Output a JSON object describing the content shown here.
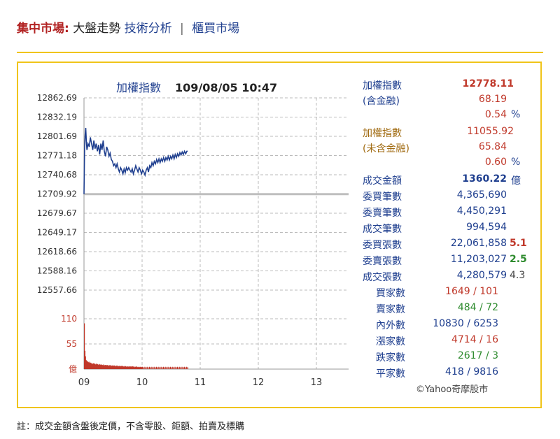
{
  "header": {
    "brand": "集中市場:",
    "current": "大盤走勢",
    "link_ta": "技術分析",
    "separator": "|",
    "link_otc": "櫃買市場"
  },
  "chart_data": {
    "type": "line",
    "title": "加權指數",
    "timestamp": "109/08/05 10:47",
    "x_ticks": [
      "09",
      "10",
      "11",
      "12",
      "13"
    ],
    "y_ticks": [
      "12862.69",
      "12832.19",
      "12801.69",
      "12771.18",
      "12740.68",
      "12709.92",
      "12679.67",
      "12649.17",
      "12618.66",
      "12588.16",
      "12557.66"
    ],
    "ylim": [
      12557.66,
      12862.69
    ],
    "reference": 12709.92,
    "price_series": [
      [
        9.0,
        12709.92
      ],
      [
        9.01,
        12780
      ],
      [
        9.02,
        12805
      ],
      [
        9.03,
        12815
      ],
      [
        9.04,
        12795
      ],
      [
        9.05,
        12780
      ],
      [
        9.07,
        12790
      ],
      [
        9.09,
        12785
      ],
      [
        9.11,
        12800
      ],
      [
        9.13,
        12790
      ],
      [
        9.15,
        12780
      ],
      [
        9.17,
        12795
      ],
      [
        9.19,
        12782
      ],
      [
        9.21,
        12790
      ],
      [
        9.23,
        12778
      ],
      [
        9.25,
        12788
      ],
      [
        9.27,
        12773
      ],
      [
        9.29,
        12790
      ],
      [
        9.31,
        12780
      ],
      [
        9.33,
        12795
      ],
      [
        9.35,
        12778
      ],
      [
        9.37,
        12770
      ],
      [
        9.39,
        12785
      ],
      [
        9.41,
        12780
      ],
      [
        9.43,
        12770
      ],
      [
        9.45,
        12775
      ],
      [
        9.47,
        12765
      ],
      [
        9.49,
        12762
      ],
      [
        9.51,
        12755
      ],
      [
        9.53,
        12758
      ],
      [
        9.55,
        12752
      ],
      [
        9.57,
        12758
      ],
      [
        9.59,
        12750
      ],
      [
        9.61,
        12745
      ],
      [
        9.63,
        12752
      ],
      [
        9.65,
        12748
      ],
      [
        9.67,
        12742
      ],
      [
        9.69,
        12750
      ],
      [
        9.71,
        12744
      ],
      [
        9.73,
        12752
      ],
      [
        9.75,
        12748
      ],
      [
        9.77,
        12752
      ],
      [
        9.79,
        12748
      ],
      [
        9.81,
        12745
      ],
      [
        9.83,
        12750
      ],
      [
        9.85,
        12742
      ],
      [
        9.87,
        12748
      ],
      [
        9.89,
        12755
      ],
      [
        9.91,
        12750
      ],
      [
        9.93,
        12745
      ],
      [
        9.95,
        12752
      ],
      [
        9.97,
        12748
      ],
      [
        9.99,
        12742
      ],
      [
        10.01,
        12748
      ],
      [
        10.03,
        12745
      ],
      [
        10.05,
        12740
      ],
      [
        10.07,
        12748
      ],
      [
        10.09,
        12752
      ],
      [
        10.11,
        12745
      ],
      [
        10.13,
        12755
      ],
      [
        10.15,
        12752
      ],
      [
        10.17,
        12760
      ],
      [
        10.19,
        12755
      ],
      [
        10.21,
        12762
      ],
      [
        10.23,
        12758
      ],
      [
        10.25,
        12765
      ],
      [
        10.27,
        12760
      ],
      [
        10.29,
        12766
      ],
      [
        10.31,
        12760
      ],
      [
        10.33,
        12766
      ],
      [
        10.35,
        12762
      ],
      [
        10.37,
        12768
      ],
      [
        10.39,
        12762
      ],
      [
        10.41,
        12768
      ],
      [
        10.43,
        12764
      ],
      [
        10.45,
        12770
      ],
      [
        10.47,
        12764
      ],
      [
        10.49,
        12770
      ],
      [
        10.51,
        12766
      ],
      [
        10.53,
        12772
      ],
      [
        10.55,
        12766
      ],
      [
        10.57,
        12773
      ],
      [
        10.59,
        12768
      ],
      [
        10.61,
        12774
      ],
      [
        10.63,
        12770
      ],
      [
        10.65,
        12776
      ],
      [
        10.67,
        12772
      ],
      [
        10.69,
        12777
      ],
      [
        10.71,
        12773
      ],
      [
        10.73,
        12778
      ],
      [
        10.75,
        12774
      ],
      [
        10.77,
        12778
      ],
      [
        10.783,
        12778.11
      ]
    ],
    "volume_ticks": [
      "110",
      "55",
      "億"
    ],
    "volume_ylim": [
      0,
      110
    ],
    "volume_series": [
      [
        9.0,
        100
      ],
      [
        9.01,
        40
      ],
      [
        9.02,
        28
      ],
      [
        9.03,
        20
      ],
      [
        9.04,
        18
      ],
      [
        9.05,
        16
      ],
      [
        9.06,
        17
      ],
      [
        9.07,
        15
      ],
      [
        9.08,
        14
      ],
      [
        9.09,
        16
      ],
      [
        9.1,
        13
      ],
      [
        9.11,
        14
      ],
      [
        9.12,
        12
      ],
      [
        9.13,
        13
      ],
      [
        9.14,
        11
      ],
      [
        9.15,
        12
      ],
      [
        9.16,
        13
      ],
      [
        9.17,
        11
      ],
      [
        9.18,
        12
      ],
      [
        9.19,
        10
      ],
      [
        9.2,
        11
      ],
      [
        9.21,
        12
      ],
      [
        9.22,
        10
      ],
      [
        9.23,
        11
      ],
      [
        9.24,
        9
      ],
      [
        9.25,
        10
      ],
      [
        9.26,
        11
      ],
      [
        9.27,
        9
      ],
      [
        9.28,
        10
      ],
      [
        9.29,
        9
      ],
      [
        9.3,
        10
      ],
      [
        9.31,
        9
      ],
      [
        9.32,
        8
      ],
      [
        9.33,
        10
      ],
      [
        9.34,
        9
      ],
      [
        9.35,
        8
      ],
      [
        9.36,
        9
      ],
      [
        9.37,
        8
      ],
      [
        9.38,
        9
      ],
      [
        9.39,
        8
      ],
      [
        9.4,
        9
      ],
      [
        9.41,
        8
      ],
      [
        9.42,
        7
      ],
      [
        9.43,
        8
      ],
      [
        9.44,
        9
      ],
      [
        9.45,
        7
      ],
      [
        9.46,
        8
      ],
      [
        9.47,
        7
      ],
      [
        9.48,
        8
      ],
      [
        9.49,
        7
      ],
      [
        9.5,
        8
      ],
      [
        9.51,
        7
      ],
      [
        9.52,
        8
      ],
      [
        9.53,
        7
      ],
      [
        9.54,
        6
      ],
      [
        9.55,
        7
      ],
      [
        9.56,
        8
      ],
      [
        9.57,
        6
      ],
      [
        9.58,
        7
      ],
      [
        9.59,
        6
      ],
      [
        9.6,
        7
      ],
      [
        9.61,
        6
      ],
      [
        9.62,
        7
      ],
      [
        9.63,
        6
      ],
      [
        9.64,
        7
      ],
      [
        9.65,
        6
      ],
      [
        9.66,
        7
      ],
      [
        9.67,
        6
      ],
      [
        9.68,
        5
      ],
      [
        9.69,
        6
      ],
      [
        9.7,
        7
      ],
      [
        9.71,
        6
      ],
      [
        9.72,
        5
      ],
      [
        9.73,
        6
      ],
      [
        9.74,
        5
      ],
      [
        9.75,
        6
      ],
      [
        9.76,
        5
      ],
      [
        9.77,
        6
      ],
      [
        9.78,
        5
      ],
      [
        9.79,
        6
      ],
      [
        9.8,
        5
      ],
      [
        9.81,
        6
      ],
      [
        9.82,
        5
      ],
      [
        9.83,
        6
      ],
      [
        9.84,
        5
      ],
      [
        9.85,
        6
      ],
      [
        9.86,
        5
      ],
      [
        9.87,
        4
      ],
      [
        9.88,
        5
      ],
      [
        9.89,
        6
      ],
      [
        9.9,
        5
      ],
      [
        9.91,
        4
      ],
      [
        9.92,
        5
      ],
      [
        9.93,
        4
      ],
      [
        9.94,
        5
      ],
      [
        9.95,
        4
      ],
      [
        9.96,
        5
      ],
      [
        9.97,
        4
      ],
      [
        9.98,
        5
      ],
      [
        9.99,
        4
      ],
      [
        10.0,
        5
      ],
      [
        10.02,
        4
      ],
      [
        10.04,
        5
      ],
      [
        10.06,
        4
      ],
      [
        10.08,
        5
      ],
      [
        10.1,
        4
      ],
      [
        10.12,
        5
      ],
      [
        10.14,
        4
      ],
      [
        10.16,
        5
      ],
      [
        10.18,
        4
      ],
      [
        10.2,
        5
      ],
      [
        10.22,
        4
      ],
      [
        10.24,
        5
      ],
      [
        10.26,
        4
      ],
      [
        10.28,
        5
      ],
      [
        10.3,
        4
      ],
      [
        10.32,
        5
      ],
      [
        10.34,
        4
      ],
      [
        10.36,
        5
      ],
      [
        10.38,
        4
      ],
      [
        10.4,
        5
      ],
      [
        10.42,
        4
      ],
      [
        10.44,
        5
      ],
      [
        10.46,
        4
      ],
      [
        10.48,
        5
      ],
      [
        10.5,
        4
      ],
      [
        10.52,
        5
      ],
      [
        10.54,
        4
      ],
      [
        10.56,
        5
      ],
      [
        10.58,
        4
      ],
      [
        10.6,
        5
      ],
      [
        10.62,
        4
      ],
      [
        10.64,
        5
      ],
      [
        10.66,
        4
      ],
      [
        10.68,
        5
      ],
      [
        10.7,
        4
      ],
      [
        10.72,
        5
      ],
      [
        10.74,
        4
      ],
      [
        10.76,
        5
      ],
      [
        10.78,
        4
      ]
    ],
    "grid": true
  },
  "stats": {
    "taiex_label": "加權指數",
    "taiex_value": "12778.11",
    "incl_fin_label": "(含金融)",
    "incl_fin_change": "68.19",
    "incl_fin_pct": "0.54",
    "pct_sign1": "%",
    "taiex_exfin_label": "加權指數",
    "taiex_exfin_value": "11055.92",
    "excl_fin_label": "(未含金融)",
    "excl_fin_change": "65.84",
    "excl_fin_pct": "0.60",
    "pct_sign2": "%",
    "turnover_label": "成交金額",
    "turnover_value": "1360.22",
    "turnover_unit": "億",
    "bid_orders_label": "委買筆數",
    "bid_orders_value": "4,365,690",
    "ask_orders_label": "委賣筆數",
    "ask_orders_value": "4,450,291",
    "trades_label": "成交筆數",
    "trades_value": "994,594",
    "bid_vol_label": "委買張數",
    "bid_vol_value": "22,061,858",
    "bid_vol_ratio": "5.1",
    "ask_vol_label": "委賣張數",
    "ask_vol_value": "11,203,027",
    "ask_vol_ratio": "2.5",
    "deal_vol_label": "成交張數",
    "deal_vol_value": "4,280,579",
    "deal_vol_ratio": "4.3",
    "buyers_label": "買家數",
    "buyers_value": "1649 / 101",
    "sellers_label": "賣家數",
    "sellers_value": "484 / 72",
    "inout_label": "內外數",
    "inout_value": "10830 / 6253",
    "up_label": "漲家數",
    "up_value": "4714 / 16",
    "down_label": "跌家數",
    "down_value": "2617 / 3",
    "flat_label": "平家數",
    "flat_value": "418 / 9816"
  },
  "source": "©Yahoo奇摩股市",
  "footnote": "註：成交金額含盤後定價，不含零股、鉅額、拍賣及標購",
  "colors": {
    "accent_yellow": "#f0c419",
    "up_red": "#c0392b",
    "down_green": "#2e8b2e",
    "line_blue": "#1f3f8f",
    "grid": "#bbbbbb",
    "reference": "#bfbfbf"
  }
}
